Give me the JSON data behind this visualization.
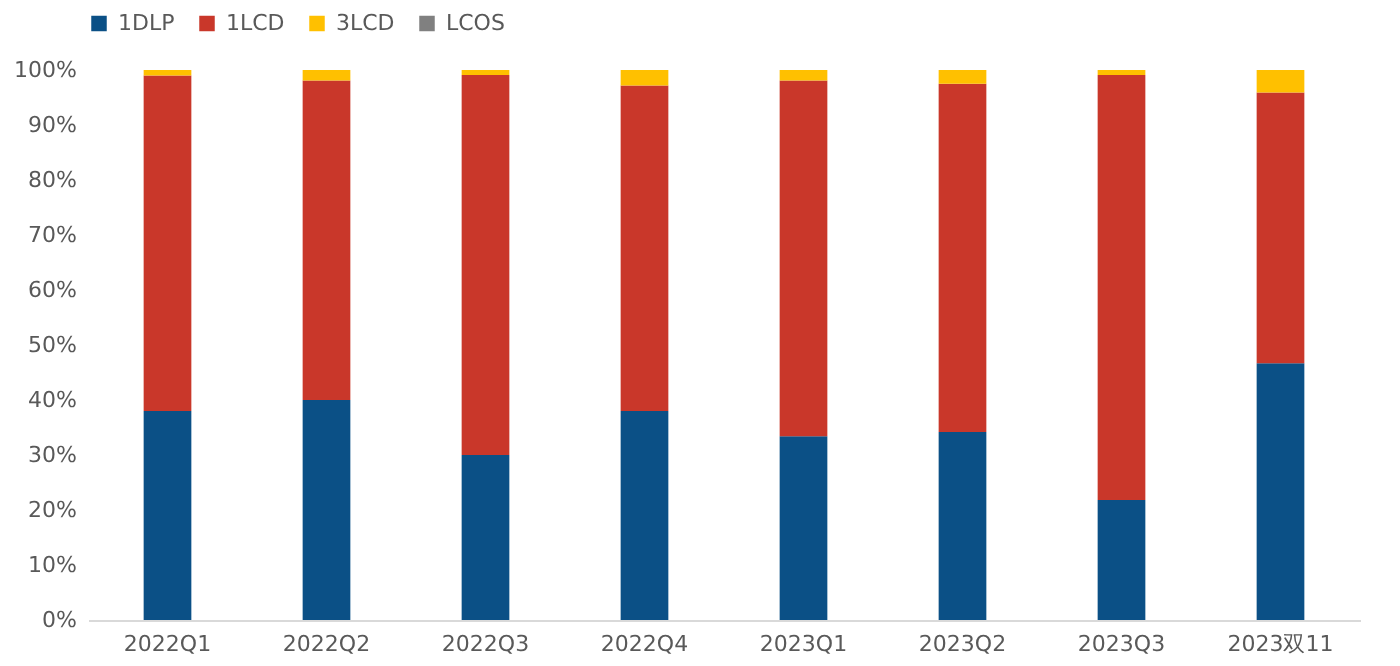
{
  "chart_data": {
    "type": "bar",
    "stacked": true,
    "categories": [
      "2022Q1",
      "2022Q2",
      "2022Q3",
      "2022Q4",
      "2023Q1",
      "2023Q2",
      "2023Q3",
      "2023双11"
    ],
    "series": [
      {
        "name": "1DLP",
        "color": "#0b5086",
        "values": [
          38,
          40,
          30,
          38,
          33.4,
          34.2,
          21.8,
          46.7
        ]
      },
      {
        "name": "1LCD",
        "color": "#c9372a",
        "values": [
          61,
          58.1,
          69.1,
          59.2,
          64.7,
          63.3,
          77.3,
          49.2
        ]
      },
      {
        "name": "3LCD",
        "color": "#ffc000",
        "values": [
          1,
          1.9,
          0.9,
          2.8,
          1.9,
          2.5,
          0.9,
          4.1
        ]
      },
      {
        "name": "LCOS",
        "color": "#808080",
        "values": [
          0,
          0,
          0,
          0,
          0,
          0,
          0,
          0
        ]
      }
    ],
    "ylim": [
      0,
      100
    ],
    "yticks": [
      {
        "value": 0,
        "label": "0%"
      },
      {
        "value": 10,
        "label": "10%"
      },
      {
        "value": 20,
        "label": "20%"
      },
      {
        "value": 30,
        "label": "30%"
      },
      {
        "value": 40,
        "label": "40%"
      },
      {
        "value": 50,
        "label": "50%"
      },
      {
        "value": 60,
        "label": "60%"
      },
      {
        "value": 70,
        "label": "70%"
      },
      {
        "value": 80,
        "label": "80%"
      },
      {
        "value": 90,
        "label": "90%"
      },
      {
        "value": 100,
        "label": "100%"
      }
    ],
    "legend": "top"
  }
}
